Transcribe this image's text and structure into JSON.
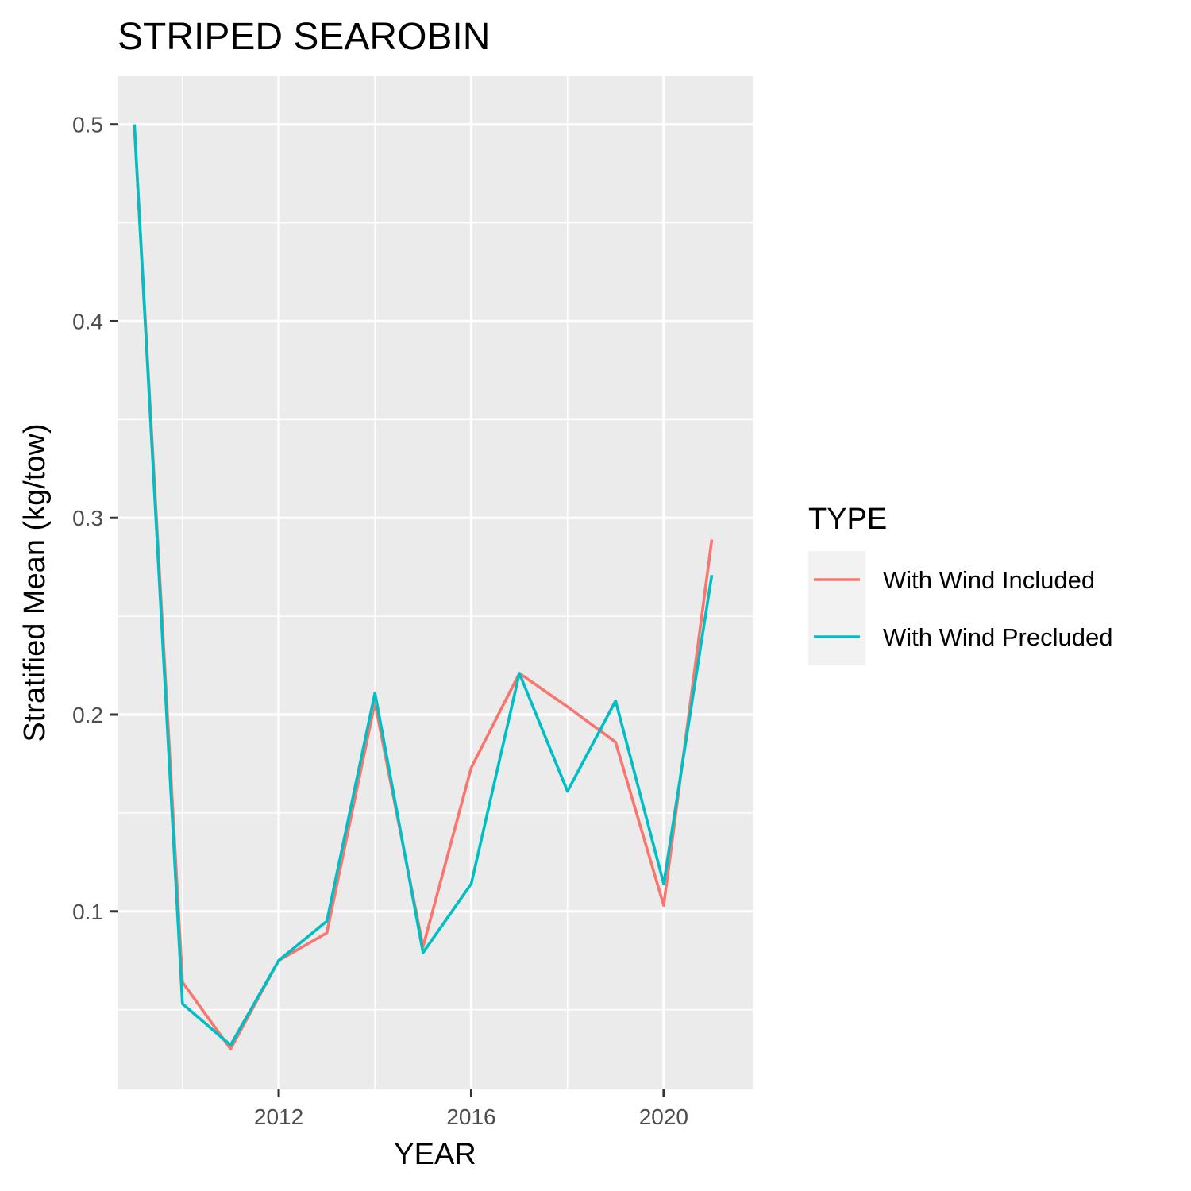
{
  "chart_data": {
    "type": "line",
    "title": "STRIPED SEAROBIN",
    "xlabel": "YEAR",
    "ylabel": "Stratified Mean (kg/tow)",
    "x": [
      2009,
      2010,
      2011,
      2012,
      2013,
      2014,
      2015,
      2016,
      2017,
      2018,
      2019,
      2020,
      2021
    ],
    "xlim": [
      2008.65,
      2021.85
    ],
    "ylim": [
      0.0095,
      0.5245
    ],
    "x_ticks": [
      2012,
      2016,
      2020
    ],
    "x_tick_labels": [
      "2012",
      "2016",
      "2020"
    ],
    "x_minor_ticks": [
      2010,
      2014,
      2018
    ],
    "y_ticks": [
      0.1,
      0.2,
      0.3,
      0.4,
      0.5
    ],
    "y_tick_labels": [
      "0.1",
      "0.2",
      "0.3",
      "0.4",
      "0.5"
    ],
    "y_minor_ticks": [
      0.05,
      0.15,
      0.25,
      0.35,
      0.45
    ],
    "grid": true,
    "legend": {
      "title": "TYPE",
      "position": "right"
    },
    "series": [
      {
        "name": "With Wind Included",
        "color": "#F8766D",
        "values": [
          0.5,
          0.064,
          0.03,
          0.075,
          0.089,
          0.206,
          0.082,
          0.173,
          0.221,
          0.204,
          0.186,
          0.103,
          0.289
        ]
      },
      {
        "name": "With Wind Precluded",
        "color": "#00BFC4",
        "values": [
          0.5,
          0.053,
          0.032,
          0.075,
          0.095,
          0.211,
          0.079,
          0.114,
          0.221,
          0.161,
          0.207,
          0.114,
          0.271
        ]
      }
    ]
  }
}
